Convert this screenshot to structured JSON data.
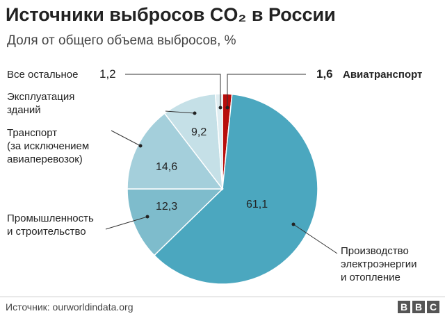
{
  "chart_data": {
    "type": "pie",
    "title": "Источники выбросов CO₂ в России",
    "subtitle": "Доля от общего объема выбросов, %",
    "categories": [
      "Авиатранспорт",
      "Производство\nэлектроэнергии\nи отопление",
      "Промышленность\nи строительство",
      "Транспорт\n(за исключением\nавиаперевозок)",
      "Эксплуатация\nзданий",
      "Все остальное"
    ],
    "values": [
      1.6,
      61.1,
      12.3,
      14.6,
      9.2,
      1.2
    ],
    "value_labels": [
      "1,6",
      "61,1",
      "12,3",
      "14,6",
      "9,2",
      "1,2"
    ],
    "colors": [
      "#b80d0b",
      "#4ba7bf",
      "#7ebccc",
      "#a4cfdb",
      "#c5e0e7",
      "#dfedf1"
    ],
    "source": "Источник: ourworldindata.org",
    "brand": [
      "B",
      "B",
      "C"
    ]
  }
}
